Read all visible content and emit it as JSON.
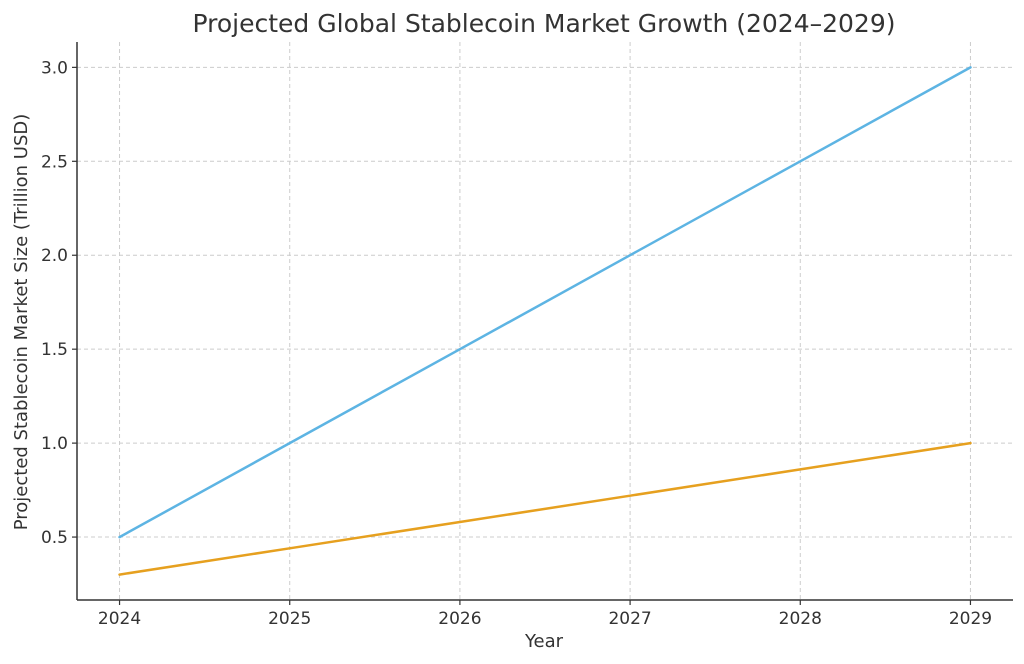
{
  "chart_data": {
    "type": "line",
    "title": "Projected Global Stablecoin Market Growth (2024–2029)",
    "xlabel": "Year",
    "ylabel": "Projected Stablecoin Market Size (Trillion USD)",
    "x": [
      2024,
      2025,
      2026,
      2027,
      2028,
      2029
    ],
    "xlim": [
      2023.75,
      2029.25
    ],
    "ylim": [
      0.165,
      3.135
    ],
    "xticks": [
      "2024",
      "2025",
      "2026",
      "2027",
      "2028",
      "2029"
    ],
    "yticks": [
      0.5,
      1.0,
      1.5,
      2.0,
      2.5,
      3.0
    ],
    "ytick_labels": [
      "0.5",
      "1.0",
      "1.5",
      "2.0",
      "2.5",
      "3.0"
    ],
    "grid": true,
    "series": [
      {
        "color": "#5DB4E3",
        "values": [
          0.5,
          1.0,
          1.5,
          2.0,
          2.5,
          3.0
        ]
      },
      {
        "color": "#E6A01F",
        "values": [
          0.3,
          0.44,
          0.58,
          0.72,
          0.86,
          1.0
        ]
      }
    ]
  }
}
